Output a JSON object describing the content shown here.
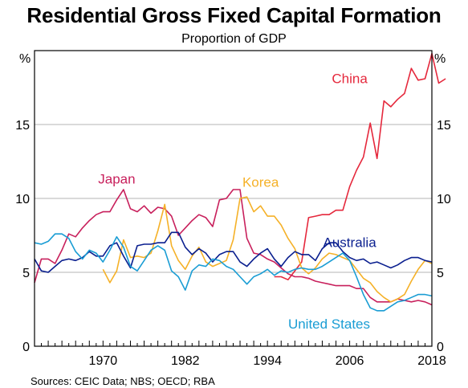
{
  "chart_data": {
    "type": "line",
    "title": "Residential Gross Fixed Capital Formation",
    "subtitle": "Proportion of GDP",
    "y_unit_left": "%",
    "y_unit_right": "%",
    "ylim": [
      0,
      20
    ],
    "yticks": [
      0,
      5,
      10,
      15
    ],
    "xlim": [
      1960,
      2018
    ],
    "xticks": [
      1970,
      1982,
      1994,
      2006,
      2018
    ],
    "grid": true,
    "source": "Sources: CEIC Data; NBS; OECD; RBA",
    "series": [
      {
        "name": "China",
        "color": "#e5283c",
        "label_pos": [
          2006,
          17.8
        ],
        "points": [
          [
            1995,
            4.7
          ],
          [
            1996,
            4.7
          ],
          [
            1997,
            4.5
          ],
          [
            1998,
            5.1
          ],
          [
            1999,
            5.7
          ],
          [
            2000,
            8.7
          ],
          [
            2001,
            8.8
          ],
          [
            2002,
            8.9
          ],
          [
            2003,
            8.9
          ],
          [
            2004,
            9.2
          ],
          [
            2005,
            9.2
          ],
          [
            2006,
            10.8
          ],
          [
            2007,
            11.9
          ],
          [
            2008,
            12.8
          ],
          [
            2009,
            15.1
          ],
          [
            2010,
            12.7
          ],
          [
            2011,
            16.6
          ],
          [
            2012,
            16.2
          ],
          [
            2013,
            16.7
          ],
          [
            2014,
            17.1
          ],
          [
            2015,
            18.8
          ],
          [
            2016,
            18.0
          ],
          [
            2017,
            18.1
          ],
          [
            2018,
            19.8
          ],
          [
            2019,
            17.8
          ],
          [
            2020,
            18.1
          ]
        ]
      },
      {
        "name": "Japan",
        "color": "#c8205c",
        "label_pos": [
          1972,
          11.0
        ],
        "points": [
          [
            1960,
            4.3
          ],
          [
            1961,
            5.9
          ],
          [
            1962,
            5.9
          ],
          [
            1963,
            5.6
          ],
          [
            1964,
            6.5
          ],
          [
            1965,
            7.6
          ],
          [
            1966,
            7.4
          ],
          [
            1967,
            8.0
          ],
          [
            1968,
            8.5
          ],
          [
            1969,
            8.9
          ],
          [
            1970,
            9.1
          ],
          [
            1971,
            9.1
          ],
          [
            1972,
            9.9
          ],
          [
            1973,
            10.6
          ],
          [
            1974,
            9.3
          ],
          [
            1975,
            9.1
          ],
          [
            1976,
            9.5
          ],
          [
            1977,
            9.0
          ],
          [
            1978,
            9.4
          ],
          [
            1979,
            9.3
          ],
          [
            1980,
            8.8
          ],
          [
            1981,
            7.5
          ],
          [
            1982,
            8.0
          ],
          [
            1983,
            8.5
          ],
          [
            1984,
            8.9
          ],
          [
            1985,
            8.7
          ],
          [
            1986,
            8.1
          ],
          [
            1987,
            9.9
          ],
          [
            1988,
            10.0
          ],
          [
            1989,
            10.6
          ],
          [
            1990,
            10.6
          ],
          [
            1991,
            7.3
          ],
          [
            1992,
            6.3
          ],
          [
            1993,
            6.2
          ],
          [
            1994,
            5.9
          ],
          [
            1995,
            5.7
          ],
          [
            1996,
            5.3
          ],
          [
            1997,
            4.9
          ],
          [
            1998,
            4.7
          ],
          [
            1999,
            4.7
          ],
          [
            2000,
            4.6
          ],
          [
            2001,
            4.4
          ],
          [
            2002,
            4.3
          ],
          [
            2003,
            4.2
          ],
          [
            2004,
            4.1
          ],
          [
            2005,
            4.1
          ],
          [
            2006,
            4.1
          ],
          [
            2007,
            3.9
          ],
          [
            2008,
            3.9
          ],
          [
            2009,
            3.3
          ],
          [
            2010,
            3.0
          ],
          [
            2011,
            3.0
          ],
          [
            2012,
            3.0
          ],
          [
            2013,
            3.2
          ],
          [
            2014,
            3.1
          ],
          [
            2015,
            3.0
          ],
          [
            2016,
            3.1
          ],
          [
            2017,
            3.0
          ],
          [
            2018,
            2.8
          ]
        ]
      },
      {
        "name": "Korea",
        "color": "#f5b128",
        "label_pos": [
          1993,
          10.8
        ],
        "points": [
          [
            1970,
            5.2
          ],
          [
            1971,
            4.3
          ],
          [
            1972,
            5.1
          ],
          [
            1973,
            7.2
          ],
          [
            1974,
            6.0
          ],
          [
            1975,
            6.1
          ],
          [
            1976,
            6.0
          ],
          [
            1977,
            6.3
          ],
          [
            1978,
            7.8
          ],
          [
            1979,
            9.6
          ],
          [
            1980,
            6.8
          ],
          [
            1981,
            5.8
          ],
          [
            1982,
            5.2
          ],
          [
            1983,
            6.1
          ],
          [
            1984,
            6.7
          ],
          [
            1985,
            5.7
          ],
          [
            1986,
            5.4
          ],
          [
            1987,
            5.6
          ],
          [
            1988,
            5.8
          ],
          [
            1989,
            7.2
          ],
          [
            1990,
            10.0
          ],
          [
            1991,
            10.1
          ],
          [
            1992,
            9.1
          ],
          [
            1993,
            9.5
          ],
          [
            1994,
            8.8
          ],
          [
            1995,
            8.8
          ],
          [
            1996,
            8.2
          ],
          [
            1997,
            7.3
          ],
          [
            1998,
            6.6
          ],
          [
            1999,
            5.3
          ],
          [
            2000,
            4.9
          ],
          [
            2001,
            5.3
          ],
          [
            2002,
            5.9
          ],
          [
            2003,
            6.3
          ],
          [
            2004,
            6.2
          ],
          [
            2005,
            6.0
          ],
          [
            2006,
            5.8
          ],
          [
            2007,
            5.2
          ],
          [
            2008,
            4.6
          ],
          [
            2009,
            4.3
          ],
          [
            2010,
            3.7
          ],
          [
            2011,
            3.3
          ],
          [
            2012,
            3.0
          ],
          [
            2013,
            3.2
          ],
          [
            2014,
            3.5
          ],
          [
            2015,
            4.4
          ],
          [
            2016,
            5.2
          ],
          [
            2017,
            5.8
          ],
          [
            2018,
            5.6
          ]
        ]
      },
      {
        "name": "Australia",
        "color": "#0a1f8f",
        "label_pos": [
          2006,
          6.7
        ],
        "points": [
          [
            1960,
            5.9
          ],
          [
            1961,
            5.1
          ],
          [
            1962,
            5.0
          ],
          [
            1963,
            5.4
          ],
          [
            1964,
            5.8
          ],
          [
            1965,
            5.9
          ],
          [
            1966,
            5.8
          ],
          [
            1967,
            6.0
          ],
          [
            1968,
            6.4
          ],
          [
            1969,
            6.1
          ],
          [
            1970,
            6.1
          ],
          [
            1971,
            6.8
          ],
          [
            1972,
            7.0
          ],
          [
            1973,
            6.1
          ],
          [
            1974,
            5.3
          ],
          [
            1975,
            6.8
          ],
          [
            1976,
            6.9
          ],
          [
            1977,
            6.9
          ],
          [
            1978,
            7.0
          ],
          [
            1979,
            7.0
          ],
          [
            1980,
            7.7
          ],
          [
            1981,
            7.7
          ],
          [
            1982,
            6.7
          ],
          [
            1983,
            6.2
          ],
          [
            1984,
            6.6
          ],
          [
            1985,
            6.3
          ],
          [
            1986,
            5.7
          ],
          [
            1987,
            6.2
          ],
          [
            1988,
            6.4
          ],
          [
            1989,
            6.4
          ],
          [
            1990,
            5.7
          ],
          [
            1991,
            5.4
          ],
          [
            1992,
            5.9
          ],
          [
            1993,
            6.3
          ],
          [
            1994,
            6.6
          ],
          [
            1995,
            5.9
          ],
          [
            1996,
            5.4
          ],
          [
            1997,
            6.0
          ],
          [
            1998,
            6.4
          ],
          [
            1999,
            6.2
          ],
          [
            2000,
            6.2
          ],
          [
            2001,
            5.8
          ],
          [
            2002,
            6.6
          ],
          [
            2003,
            7.0
          ],
          [
            2004,
            7.0
          ],
          [
            2005,
            6.4
          ],
          [
            2006,
            6.0
          ],
          [
            2007,
            5.8
          ],
          [
            2008,
            5.9
          ],
          [
            2009,
            5.6
          ],
          [
            2010,
            5.7
          ],
          [
            2011,
            5.5
          ],
          [
            2012,
            5.3
          ],
          [
            2013,
            5.5
          ],
          [
            2014,
            5.8
          ],
          [
            2015,
            6.0
          ],
          [
            2016,
            6.0
          ],
          [
            2017,
            5.8
          ],
          [
            2018,
            5.7
          ]
        ]
      },
      {
        "name": "United States",
        "color": "#1a9dd4",
        "label_pos": [
          2003,
          1.2
        ],
        "points": [
          [
            1960,
            7.0
          ],
          [
            1961,
            6.9
          ],
          [
            1962,
            7.1
          ],
          [
            1963,
            7.6
          ],
          [
            1964,
            7.6
          ],
          [
            1965,
            7.3
          ],
          [
            1966,
            6.4
          ],
          [
            1967,
            5.9
          ],
          [
            1968,
            6.5
          ],
          [
            1969,
            6.3
          ],
          [
            1970,
            5.7
          ],
          [
            1971,
            6.5
          ],
          [
            1972,
            7.4
          ],
          [
            1973,
            6.7
          ],
          [
            1974,
            5.4
          ],
          [
            1975,
            5.1
          ],
          [
            1976,
            5.8
          ],
          [
            1977,
            6.5
          ],
          [
            1978,
            6.8
          ],
          [
            1979,
            6.5
          ],
          [
            1980,
            5.1
          ],
          [
            1981,
            4.7
          ],
          [
            1982,
            3.8
          ],
          [
            1983,
            5.1
          ],
          [
            1984,
            5.5
          ],
          [
            1985,
            5.4
          ],
          [
            1986,
            5.9
          ],
          [
            1987,
            5.8
          ],
          [
            1988,
            5.4
          ],
          [
            1989,
            5.2
          ],
          [
            1990,
            4.7
          ],
          [
            1991,
            4.2
          ],
          [
            1992,
            4.7
          ],
          [
            1993,
            4.9
          ],
          [
            1994,
            5.2
          ],
          [
            1995,
            4.8
          ],
          [
            1996,
            5.1
          ],
          [
            1997,
            5.0
          ],
          [
            1998,
            5.2
          ],
          [
            1999,
            5.3
          ],
          [
            2000,
            5.2
          ],
          [
            2001,
            5.2
          ],
          [
            2002,
            5.4
          ],
          [
            2003,
            5.7
          ],
          [
            2004,
            6.0
          ],
          [
            2005,
            6.3
          ],
          [
            2006,
            5.8
          ],
          [
            2007,
            4.7
          ],
          [
            2008,
            3.5
          ],
          [
            2009,
            2.6
          ],
          [
            2010,
            2.4
          ],
          [
            2011,
            2.4
          ],
          [
            2012,
            2.7
          ],
          [
            2013,
            3.0
          ],
          [
            2014,
            3.1
          ],
          [
            2015,
            3.3
          ],
          [
            2016,
            3.5
          ],
          [
            2017,
            3.5
          ],
          [
            2018,
            3.4
          ]
        ]
      }
    ]
  }
}
